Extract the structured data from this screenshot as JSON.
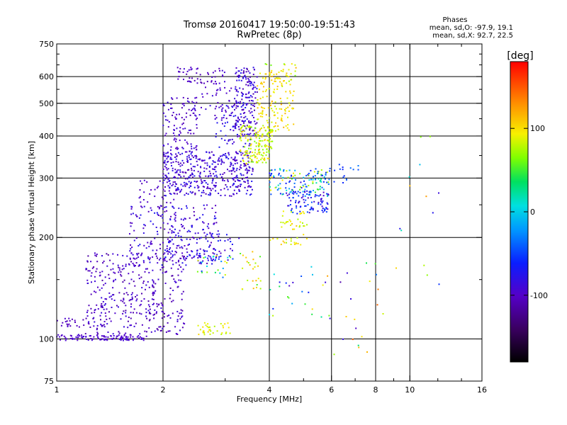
{
  "chart_data": {
    "type": "scatter",
    "title": "Tromsø 20160417 19:50:00-19:51:43",
    "subtitle": "RwPretec (8p)",
    "stats": {
      "heading": "Phases",
      "line1": "mean, sd,O: -97.9, 19.1",
      "line2": "mean, sd,X:  92.7, 22.5"
    },
    "xlabel": "Frequency [MHz]",
    "ylabel": "Stationary phase Virtual Height [km]",
    "x_scale": "log",
    "y_scale": "log",
    "xlim": [
      1,
      16
    ],
    "ylim": [
      75,
      750
    ],
    "xticks": [
      1,
      2,
      4,
      6,
      8,
      10,
      16
    ],
    "xtick_labels": [
      "1",
      "2",
      "4",
      "6",
      "8",
      "10",
      "16"
    ],
    "x_minor_ticks": [
      3,
      5,
      7,
      9,
      12,
      14
    ],
    "yticks": [
      75,
      100,
      200,
      300,
      400,
      500,
      600,
      750
    ],
    "ytick_labels": [
      "75",
      "100",
      "200",
      "300",
      "400",
      "500",
      "600",
      "750"
    ],
    "y_minor_ticks": [
      150,
      250,
      350,
      450,
      550,
      650,
      700
    ],
    "grid_x": [
      2,
      4,
      6,
      8,
      10
    ],
    "grid_y": [
      100,
      200,
      300,
      400,
      500,
      600
    ],
    "colorbar": {
      "label": "[deg]",
      "min": -180,
      "max": 180,
      "ticks": [
        -100,
        0,
        100
      ],
      "tick_labels": [
        "-100",
        "0",
        "100"
      ],
      "colormap": "rainbow"
    },
    "clusters": [
      {
        "x": [
          1.0,
          1.8
        ],
        "y": [
          99,
          103
        ],
        "phase": [
          -105,
          -90
        ],
        "n": 110
      },
      {
        "x": [
          1.0,
          1.2
        ],
        "y": [
          108,
          115
        ],
        "phase": [
          -110,
          -95
        ],
        "n": 20
      },
      {
        "x": [
          1.2,
          2.3
        ],
        "y": [
          103,
          180
        ],
        "phase": [
          -115,
          -85
        ],
        "n": 380
      },
      {
        "x": [
          1.6,
          2.9
        ],
        "y": [
          165,
          250
        ],
        "phase": [
          -110,
          -70
        ],
        "n": 230
      },
      {
        "x": [
          2.0,
          3.3
        ],
        "y": [
          170,
          210
        ],
        "phase": [
          -105,
          -60
        ],
        "n": 90
      },
      {
        "x": [
          1.7,
          2.2
        ],
        "y": [
          230,
          300
        ],
        "phase": [
          -110,
          -90
        ],
        "n": 40
      },
      {
        "x": [
          2.0,
          3.6
        ],
        "y": [
          265,
          360
        ],
        "phase": [
          -110,
          -70
        ],
        "n": 420
      },
      {
        "x": [
          2.0,
          2.5
        ],
        "y": [
          330,
          520
        ],
        "phase": [
          -110,
          -85
        ],
        "n": 120
      },
      {
        "x": [
          2.2,
          3.0
        ],
        "y": [
          570,
          640
        ],
        "phase": [
          -110,
          -90
        ],
        "n": 55
      },
      {
        "x": [
          2.3,
          3.2
        ],
        "y": [
          460,
          560
        ],
        "phase": [
          -105,
          -85
        ],
        "n": 40
      },
      {
        "x": [
          2.8,
          3.6
        ],
        "y": [
          370,
          500
        ],
        "phase": [
          -100,
          -70
        ],
        "n": 80
      },
      {
        "x": [
          3.2,
          3.7
        ],
        "y": [
          400,
          640
        ],
        "phase": [
          -115,
          -70
        ],
        "n": 160
      },
      {
        "x": [
          3.3,
          4.1
        ],
        "y": [
          330,
          430
        ],
        "phase": [
          60,
          110
        ],
        "n": 160
      },
      {
        "x": [
          3.7,
          4.7
        ],
        "y": [
          410,
          620
        ],
        "phase": [
          80,
          120
        ],
        "n": 140
      },
      {
        "x": [
          3.9,
          4.8
        ],
        "y": [
          580,
          655
        ],
        "phase": [
          60,
          120
        ],
        "n": 25
      },
      {
        "x": [
          4.0,
          5.9
        ],
        "y": [
          265,
          320
        ],
        "phase": [
          -90,
          100
        ],
        "n": 130
      },
      {
        "x": [
          4.5,
          5.9
        ],
        "y": [
          235,
          275
        ],
        "phase": [
          -100,
          -40
        ],
        "n": 90
      },
      {
        "x": [
          4.3,
          5.2
        ],
        "y": [
          210,
          240
        ],
        "phase": [
          70,
          110
        ],
        "n": 30
      },
      {
        "x": [
          4.0,
          5.2
        ],
        "y": [
          190,
          205
        ],
        "phase": [
          70,
          115
        ],
        "n": 20
      },
      {
        "x": [
          3.3,
          3.8
        ],
        "y": [
          140,
          190
        ],
        "phase": [
          50,
          120
        ],
        "n": 25
      },
      {
        "x": [
          2.5,
          3.1
        ],
        "y": [
          103,
          112
        ],
        "phase": [
          75,
          105
        ],
        "n": 35
      },
      {
        "x": [
          2.5,
          3.2
        ],
        "y": [
          150,
          180
        ],
        "phase": [
          -60,
          110
        ],
        "n": 25
      },
      {
        "x": [
          4.0,
          6.0
        ],
        "y": [
          115,
          165
        ],
        "phase": [
          -100,
          110
        ],
        "n": 25
      },
      {
        "x": [
          5.8,
          8.5
        ],
        "y": [
          90,
          180
        ],
        "phase": [
          -120,
          150
        ],
        "n": 22
      },
      {
        "x": [
          9.0,
          12.5
        ],
        "y": [
          140,
          400
        ],
        "phase": [
          -100,
          140
        ],
        "n": 14
      },
      {
        "x": [
          5.2,
          7.3
        ],
        "y": [
          290,
          330
        ],
        "phase": [
          -60,
          -30
        ],
        "n": 25
      }
    ]
  }
}
